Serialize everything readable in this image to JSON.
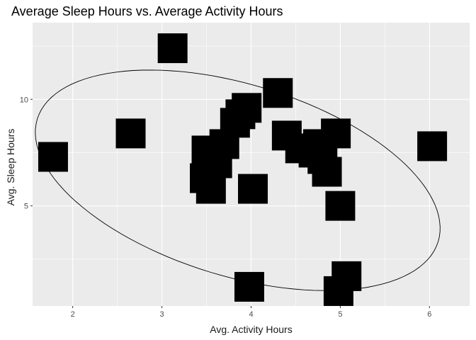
{
  "chart_data": {
    "type": "scatter",
    "title": "Average Sleep Hours vs. Average Activity Hours",
    "xlabel": "Avg. Activity Hours",
    "ylabel": "Avg. Sleep Hours",
    "xlim": [
      1.55,
      6.45
    ],
    "ylim": [
      0.3,
      13.6
    ],
    "xticks": [
      2,
      3,
      4,
      5,
      6
    ],
    "yticks": [
      5,
      10
    ],
    "grid": true,
    "panel_background": "#ebebeb",
    "grid_color": "#ffffff",
    "marker_color": "#000000",
    "marker_shape": "square",
    "ellipse": {
      "center": [
        3.85,
        6.2
      ],
      "semi_axes": [
        2.35,
        4.5
      ],
      "rotation_deg": -17
    },
    "points": [
      {
        "x": 1.78,
        "y": 7.3
      },
      {
        "x": 2.65,
        "y": 8.4
      },
      {
        "x": 3.12,
        "y": 12.4
      },
      {
        "x": 3.5,
        "y": 7.6
      },
      {
        "x": 3.48,
        "y": 6.3
      },
      {
        "x": 3.55,
        "y": 5.8
      },
      {
        "x": 3.62,
        "y": 7.0
      },
      {
        "x": 3.7,
        "y": 7.9
      },
      {
        "x": 3.82,
        "y": 8.9
      },
      {
        "x": 3.88,
        "y": 9.3
      },
      {
        "x": 3.95,
        "y": 9.6
      },
      {
        "x": 4.02,
        "y": 5.8
      },
      {
        "x": 3.98,
        "y": 1.2
      },
      {
        "x": 4.3,
        "y": 10.3
      },
      {
        "x": 4.4,
        "y": 8.3
      },
      {
        "x": 4.55,
        "y": 7.7
      },
      {
        "x": 4.7,
        "y": 7.5
      },
      {
        "x": 4.75,
        "y": 7.9
      },
      {
        "x": 4.8,
        "y": 7.2
      },
      {
        "x": 4.85,
        "y": 6.6
      },
      {
        "x": 4.95,
        "y": 8.4
      },
      {
        "x": 5.0,
        "y": 5.0
      },
      {
        "x": 5.07,
        "y": 1.7
      },
      {
        "x": 4.98,
        "y": 1.0
      },
      {
        "x": 6.03,
        "y": 7.8
      }
    ]
  }
}
